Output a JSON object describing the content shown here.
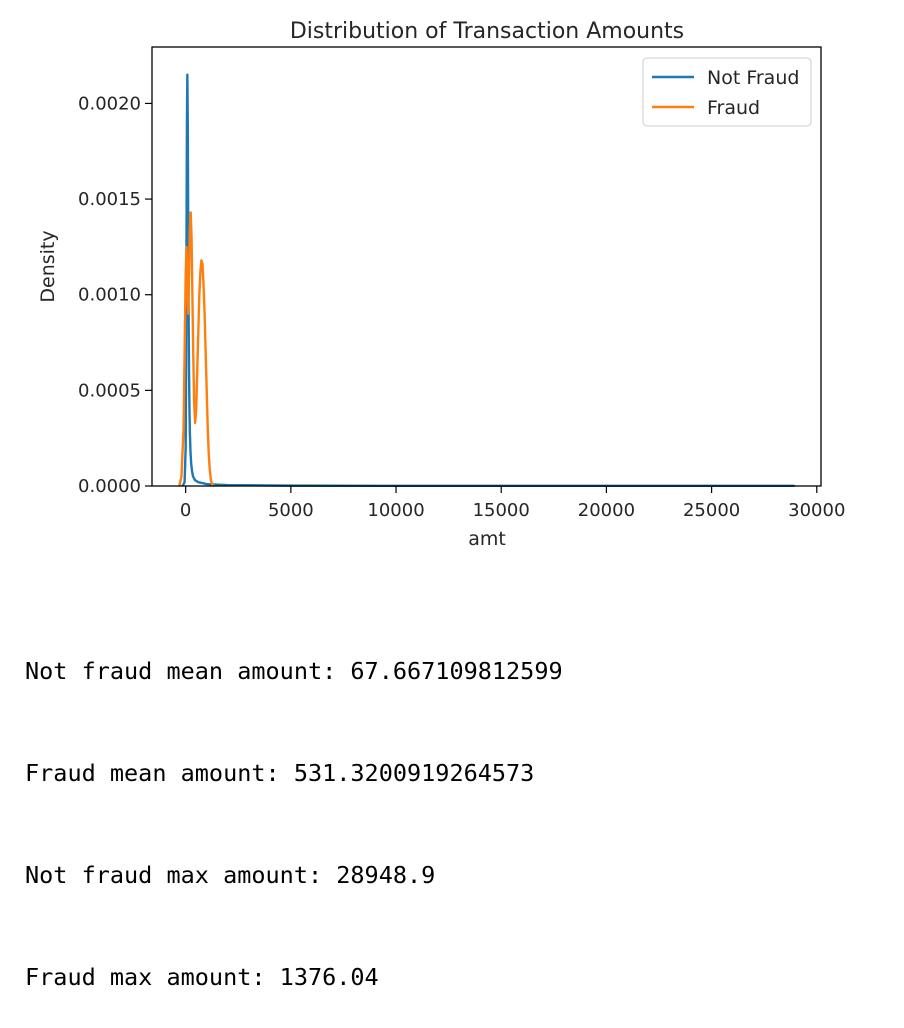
{
  "chart_data": {
    "type": "line",
    "title": "Distribution of Transaction Amounts",
    "xlabel": "amt",
    "ylabel": "Density",
    "xlim": [
      -1600,
      30200
    ],
    "ylim": [
      0,
      0.002295
    ],
    "x_ticks": [
      0,
      5000,
      10000,
      15000,
      20000,
      25000,
      30000
    ],
    "x_tick_labels": [
      "0",
      "5000",
      "10000",
      "15000",
      "20000",
      "25000",
      "30000"
    ],
    "y_ticks": [
      0,
      0.0005,
      0.001,
      0.0015,
      0.002
    ],
    "y_tick_labels": [
      "0.0000",
      "0.0005",
      "0.0010",
      "0.0015",
      "0.0020"
    ],
    "grid": false,
    "legend_position": "top-right",
    "series": [
      {
        "name": "Not Fraud",
        "color": "#1f77b4",
        "x": [
          -150,
          -50,
          0,
          20,
          40,
          60,
          80,
          100,
          120,
          140,
          160,
          180,
          200,
          230,
          260,
          300,
          350,
          450,
          600,
          800,
          1000,
          1300,
          2000,
          5000,
          10000,
          15000,
          20000,
          25000,
          28950
        ],
        "y": [
          0,
          2e-05,
          0.0002,
          0.0006,
          0.0013,
          0.0019,
          0.00215,
          0.0019,
          0.0014,
          0.0009,
          0.0006,
          0.0004,
          0.00028,
          0.00018,
          0.00012,
          8e-05,
          5e-05,
          3e-05,
          2e-05,
          1.5e-05,
          1e-05,
          8e-06,
          5e-06,
          2e-06,
          1e-06,
          1e-06,
          1e-06,
          1e-06,
          1e-06
        ]
      },
      {
        "name": "Fraud",
        "color": "#ff7f0e",
        "x": [
          -300,
          -200,
          -100,
          -50,
          0,
          40,
          80,
          120,
          160,
          200,
          240,
          280,
          320,
          360,
          400,
          450,
          500,
          550,
          600,
          650,
          700,
          750,
          800,
          850,
          900,
          950,
          1000,
          1050,
          1100,
          1150,
          1200,
          1250,
          1300,
          1376
        ],
        "y": [
          0,
          5e-05,
          0.0003,
          0.0007,
          0.0011,
          0.00125,
          0.00105,
          0.0009,
          0.0011,
          0.00135,
          0.00143,
          0.0013,
          0.001,
          0.0007,
          0.00045,
          0.00033,
          0.0004,
          0.0006,
          0.0008,
          0.001,
          0.00112,
          0.00118,
          0.00116,
          0.00105,
          0.0009,
          0.0007,
          0.0005,
          0.0003,
          0.00016,
          8e-05,
          3e-05,
          1e-05,
          3e-06,
          0
        ]
      }
    ]
  },
  "output_lines": [
    "Not fraud mean amount: 67.667109812599",
    "Fraud mean amount: 531.3200919264573",
    "Not fraud max amount: 28948.9",
    "Fraud max amount: 1376.04"
  ]
}
